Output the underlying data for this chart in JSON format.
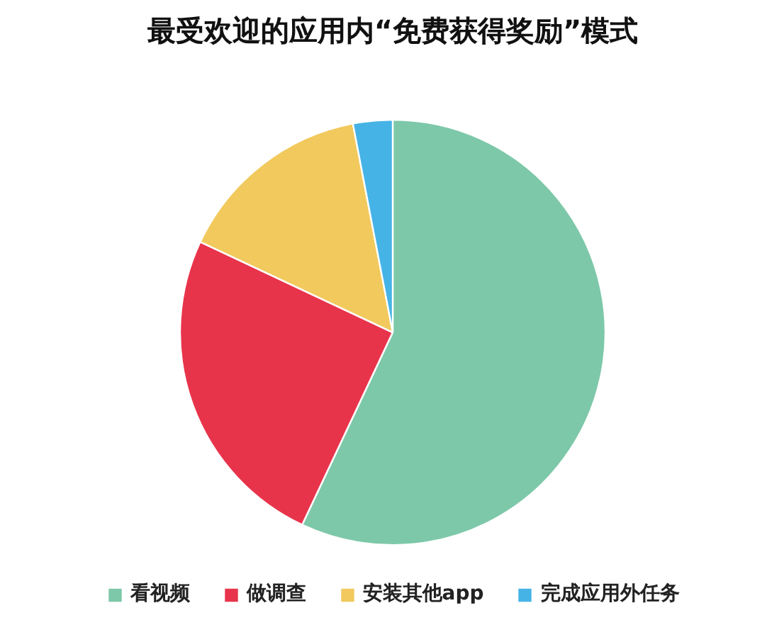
{
  "chart_data": {
    "type": "pie",
    "title": "最受欢迎的应用内“免费获得奖励”模式",
    "categories": [
      "看视频",
      "做调查",
      "安装其他app",
      "完成应用外任务"
    ],
    "values": [
      57,
      25,
      15,
      3
    ],
    "colors": [
      "#7dc8a9",
      "#e8344b",
      "#f1c95c",
      "#46b3e6"
    ],
    "legend": "bottom"
  }
}
